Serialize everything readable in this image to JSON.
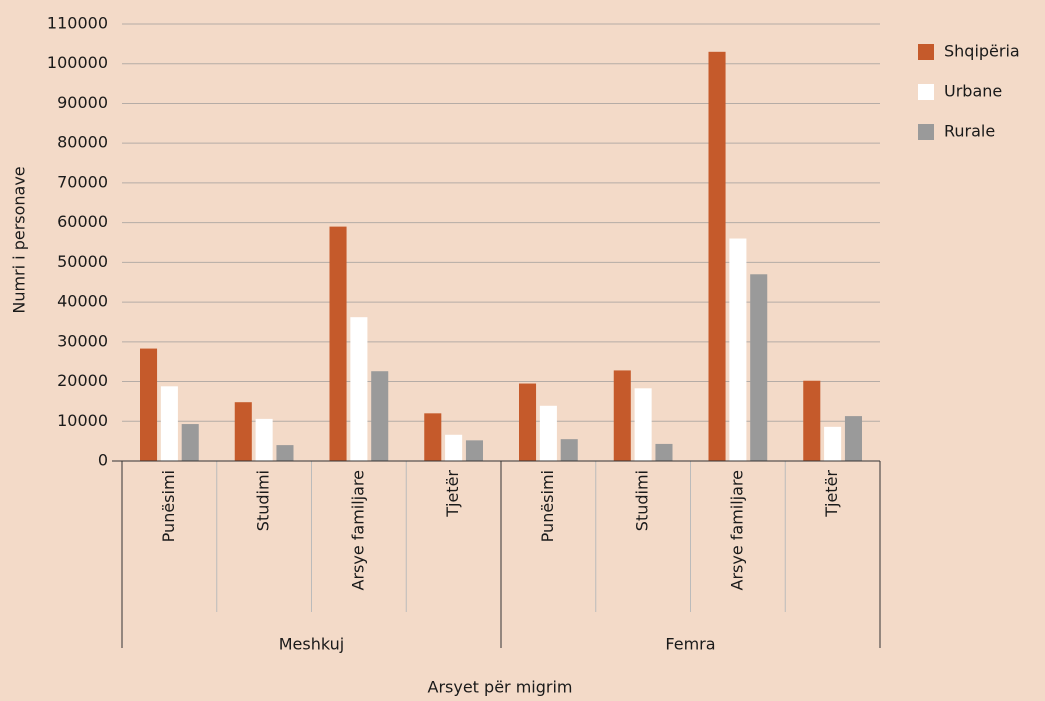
{
  "chart_data": {
    "type": "bar",
    "xlabel": "Arsyet për migrim",
    "ylabel": "Numri i personave",
    "groups": [
      {
        "name": "Meshkuj",
        "categories": [
          "Punësimi",
          "Studimi",
          "Arsye familjare",
          "Tjetër"
        ]
      },
      {
        "name": "Femra",
        "categories": [
          "Punësimi",
          "Studimi",
          "Arsye familjare",
          "Tjetër"
        ]
      }
    ],
    "series": [
      {
        "name": "Shqipëria",
        "color": "#c55a2b",
        "values": [
          28300,
          14800,
          59000,
          12000,
          19500,
          22800,
          103000,
          20200
        ]
      },
      {
        "name": "Urbane",
        "color": "#ffffff",
        "values": [
          18800,
          10600,
          36200,
          6600,
          13900,
          18300,
          56000,
          8600
        ]
      },
      {
        "name": "Rurale",
        "color": "#9a9a9a",
        "values": [
          9300,
          4000,
          22600,
          5200,
          5500,
          4300,
          47000,
          11300
        ]
      }
    ],
    "ylim": [
      0,
      110000
    ],
    "yticks": [
      0,
      10000,
      20000,
      30000,
      40000,
      50000,
      60000,
      70000,
      80000,
      90000,
      100000,
      110000
    ],
    "grid": true,
    "legend": "right"
  }
}
